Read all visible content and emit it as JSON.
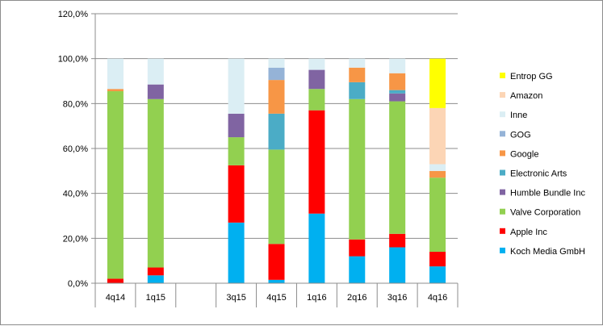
{
  "chart_data": {
    "type": "bar",
    "stacked": true,
    "title": "",
    "xlabel": "",
    "ylabel": "",
    "ylim": [
      0,
      120
    ],
    "yticks": [
      "0,0%",
      "20,0%",
      "40,0%",
      "60,0%",
      "80,0%",
      "100,0%",
      "120,0%"
    ],
    "grid": true,
    "legend_position": "right",
    "categories": [
      "4q14",
      "1q15",
      "",
      "3q15",
      "4q15",
      "1q16",
      "2q16",
      "3q16",
      "4q16"
    ],
    "series": [
      {
        "name": "Koch Media GmbH",
        "color": "#00b0f0",
        "values": [
          0,
          3.5,
          0,
          27,
          1.5,
          31,
          12,
          16,
          7.5
        ]
      },
      {
        "name": "Apple Inc",
        "color": "#ff0000",
        "values": [
          2,
          3.5,
          0,
          25.5,
          16,
          46,
          7.5,
          6,
          6.5
        ]
      },
      {
        "name": "Valve Corporation",
        "color": "#92d050",
        "values": [
          83.5,
          75,
          0,
          12.5,
          42,
          9.5,
          62.5,
          59,
          33
        ]
      },
      {
        "name": "Humble Bundle Inc",
        "color": "#8064a2",
        "values": [
          0,
          6.5,
          0,
          10.5,
          0,
          8.5,
          0,
          3.5,
          0
        ]
      },
      {
        "name": "Electronic Arts",
        "color": "#4bacc6",
        "values": [
          0,
          0,
          0,
          0,
          16,
          0,
          7.5,
          1.5,
          0
        ]
      },
      {
        "name": "Google",
        "color": "#f79646",
        "values": [
          1,
          0,
          0,
          0,
          15,
          0,
          6.5,
          7.5,
          3
        ]
      },
      {
        "name": "GOG",
        "color": "#95b3d7",
        "values": [
          0,
          0,
          0,
          0,
          5.5,
          0,
          0,
          0,
          0
        ]
      },
      {
        "name": "Inne",
        "color": "#dbeef4",
        "values": [
          13.5,
          11.5,
          0,
          24.5,
          4,
          5,
          4,
          6.5,
          3
        ]
      },
      {
        "name": "Amazon",
        "color": "#fcd5b5",
        "values": [
          0,
          0,
          0,
          0,
          0,
          0,
          0,
          0,
          25
        ]
      },
      {
        "name": "Entrop GG",
        "color": "#ffff00",
        "values": [
          0,
          0,
          0,
          0,
          0,
          0,
          0,
          0,
          22
        ]
      }
    ]
  }
}
